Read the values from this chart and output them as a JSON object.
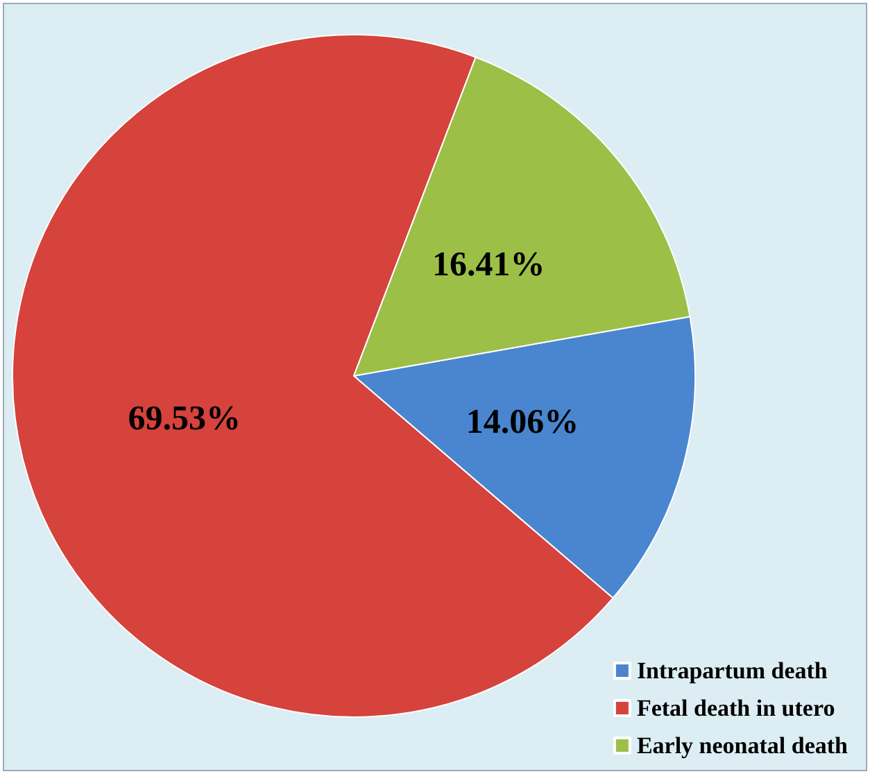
{
  "chart_data": {
    "type": "pie",
    "categories": [
      "Intrapartum death",
      "Fetal death in utero",
      "Early neonatal death"
    ],
    "values": [
      14.06,
      69.53,
      16.41
    ],
    "colors": [
      "#4a86d0",
      "#d6423c",
      "#9cbf48"
    ],
    "value_labels": [
      "14.06%",
      "69.53%",
      "16.41%"
    ],
    "legend": "bottom right"
  }
}
